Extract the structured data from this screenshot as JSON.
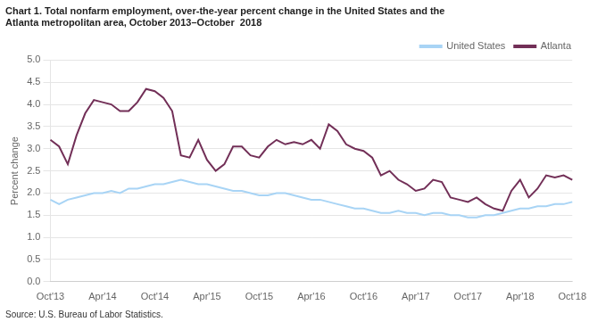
{
  "chart_data": {
    "type": "line",
    "title": [
      "Chart 1. Total nonfarm employment, over-the-year percent change in the United States and the",
      "Atlanta metropolitan area, October 2013–October  2018"
    ],
    "y_label": "Percent change",
    "annotations": [
      "Source: U.S. Bureau of Labor Statistics."
    ],
    "categories": [
      "Oct'13",
      null,
      null,
      null,
      null,
      null,
      "Apr'14",
      null,
      null,
      null,
      null,
      null,
      "Oct'14",
      null,
      null,
      null,
      null,
      null,
      "Apr'15",
      null,
      null,
      null,
      null,
      null,
      "Oct'15",
      null,
      null,
      null,
      null,
      null,
      "Apr'16",
      null,
      null,
      null,
      null,
      null,
      "Oct'16",
      null,
      null,
      null,
      null,
      null,
      "Apr'17",
      null,
      null,
      null,
      null,
      null,
      "Oct'17",
      null,
      null,
      null,
      null,
      null,
      "Apr'18",
      null,
      null,
      null,
      null,
      null,
      "Oct'18"
    ],
    "series": [
      {
        "name": "United States",
        "color": "#a8d4f5",
        "values": [
          1.85,
          1.75,
          1.85,
          1.9,
          1.95,
          2.0,
          2.0,
          2.05,
          2.0,
          2.1,
          2.1,
          2.15,
          2.2,
          2.2,
          2.25,
          2.3,
          2.25,
          2.2,
          2.2,
          2.15,
          2.1,
          2.05,
          2.05,
          2.0,
          1.95,
          1.95,
          2.0,
          2.0,
          1.95,
          1.9,
          1.85,
          1.85,
          1.8,
          1.75,
          1.7,
          1.65,
          1.65,
          1.6,
          1.55,
          1.55,
          1.6,
          1.55,
          1.55,
          1.5,
          1.55,
          1.55,
          1.5,
          1.5,
          1.45,
          1.45,
          1.5,
          1.5,
          1.55,
          1.6,
          1.65,
          1.65,
          1.7,
          1.7,
          1.75,
          1.75,
          1.8
        ]
      },
      {
        "name": "Atlanta",
        "color": "#722f57",
        "values": [
          3.2,
          3.05,
          2.65,
          3.3,
          3.8,
          4.1,
          4.05,
          4.0,
          3.85,
          3.85,
          4.05,
          4.35,
          4.3,
          4.15,
          3.85,
          2.85,
          2.8,
          3.2,
          2.75,
          2.5,
          2.65,
          3.05,
          3.05,
          2.85,
          2.8,
          3.05,
          3.2,
          3.1,
          3.15,
          3.1,
          3.2,
          3.0,
          3.55,
          3.4,
          3.1,
          3.0,
          2.95,
          2.8,
          2.4,
          2.5,
          2.3,
          2.2,
          2.05,
          2.1,
          2.3,
          2.25,
          1.9,
          1.85,
          1.8,
          1.9,
          1.75,
          1.65,
          1.6,
          2.05,
          2.3,
          1.9,
          2.1,
          2.4,
          2.35,
          2.4,
          2.3
        ]
      }
    ],
    "ylim": [
      0,
      5
    ],
    "yticks": [
      {
        "value": 0,
        "label": "0.0"
      },
      0.5,
      {
        "value": 1,
        "label": "1.0"
      },
      1.5,
      {
        "value": 2,
        "label": "2.0"
      },
      2.5,
      {
        "value": 3,
        "label": "3.0"
      },
      3.5,
      {
        "value": 4,
        "label": "4.0"
      },
      4.5,
      {
        "value": 5,
        "label": "5.0"
      }
    ],
    "grid": true,
    "legend": "upper right"
  }
}
